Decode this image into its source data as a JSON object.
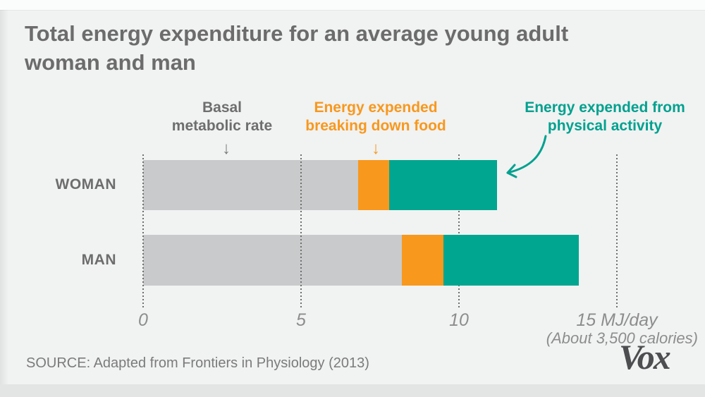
{
  "title": {
    "line1": "Total energy expenditure for an average young adult",
    "line2": "woman and man"
  },
  "annotations": {
    "bmr": {
      "label": "Basal\nmetabolic rate",
      "color": "#6e6e6e",
      "arrow": "down-arrow"
    },
    "tef": {
      "label": "Energy expended\nbreaking down food",
      "color": "#f8981d",
      "arrow": "down-arrow"
    },
    "activity": {
      "label": "Energy expended from\nphysical activity",
      "color": "#00a18f",
      "arrow": "curved-arrow"
    }
  },
  "chart_data": {
    "type": "bar",
    "orientation": "horizontal",
    "stacked": true,
    "categories": [
      "WOMAN",
      "MAN"
    ],
    "series": [
      {
        "name": "Basal metabolic rate",
        "color": "#c9cacb",
        "values": [
          6.8,
          8.2
        ]
      },
      {
        "name": "Energy expended breaking down food",
        "color": "#f8981d",
        "values": [
          1.0,
          1.3
        ]
      },
      {
        "name": "Energy expended from physical activity",
        "color": "#00a690",
        "values": [
          3.4,
          4.3
        ]
      }
    ],
    "totals_mj_per_day": [
      11.2,
      13.8
    ],
    "xlim": [
      0,
      15
    ],
    "xticks": [
      0,
      5,
      10,
      15
    ],
    "xtick_labels": [
      "0",
      "5",
      "10",
      "15 MJ/day"
    ],
    "x_axis_note": "(About 3,500 calories)",
    "unit": "MJ/day",
    "grid": "dotted-vertical",
    "legend_position": "labels-above-with-arrows"
  },
  "source": "SOURCE: Adapted from Frontiers in Physiology (2013)",
  "logo": "Vox",
  "colors": {
    "background": "#f1f2f2",
    "bar_gray": "#c9cacb",
    "bar_orange": "#f8981d",
    "bar_teal": "#00a690",
    "text_dark": "#6c6c6c",
    "axis_text": "#8d8d8d"
  }
}
